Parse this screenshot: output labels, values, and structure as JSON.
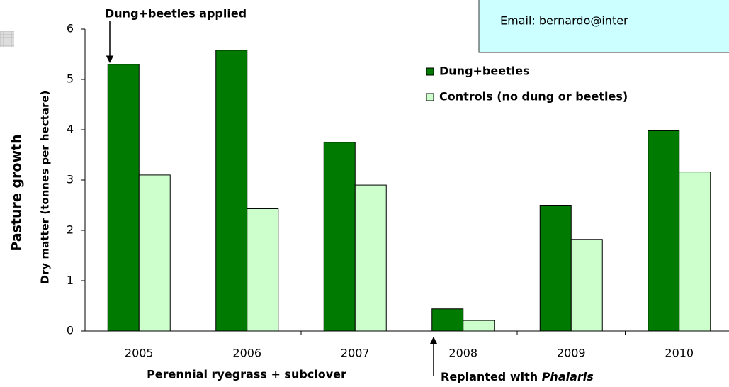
{
  "chart_data": {
    "type": "bar",
    "ylabel": "Pasture growth",
    "ylabel_sub": "Dry matter (tonnes per hectare)",
    "xlabel": "Perennial ryegrass + subclover",
    "annotations": {
      "applied": "Dung+beetles applied",
      "replanted": "Replanted with ",
      "replanted_italic": "Phalaris",
      "email": "Email: bernardo@inter"
    },
    "categories": [
      "2005",
      "2006",
      "2007",
      "2008",
      "2009",
      "2010"
    ],
    "series": [
      {
        "name": "Dung+beetles",
        "color": "#007a00",
        "values": [
          5.3,
          5.58,
          3.75,
          0.44,
          2.5,
          3.98
        ]
      },
      {
        "name": "Controls (no dung or beetles)",
        "color": "#ccffcc",
        "values": [
          3.1,
          2.43,
          2.9,
          0.21,
          1.82,
          3.16
        ]
      }
    ],
    "ylim": [
      0,
      6
    ],
    "yticks": [
      0,
      1,
      2,
      3,
      4,
      5,
      6
    ],
    "grid": false
  }
}
